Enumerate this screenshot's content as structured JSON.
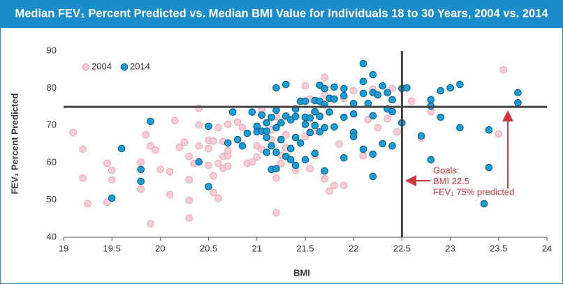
{
  "chart_data": {
    "type": "scatter",
    "title": "Median FEV₁ Percent Predicted vs. Median BMI Value for Individuals 18 to 30 Years, 2004 vs. 2014",
    "x_label": "BMI",
    "y_label": "FEV₁ Percent Predicted",
    "xlim": [
      19,
      24
    ],
    "xticks": [
      19,
      19.5,
      20,
      20.5,
      21,
      21.5,
      22,
      22.5,
      23,
      23.5,
      24
    ],
    "ylim": [
      40,
      90
    ],
    "yticks": [
      40,
      50,
      60,
      70,
      80,
      90
    ],
    "legend": "upper left",
    "reference_lines": {
      "x": 22.5,
      "y": 75
    },
    "annotation": [
      "Goals:",
      "BMI 22.5",
      "FEV₁ 75% predicted"
    ],
    "series": [
      {
        "name": "2004",
        "color": "#f7cdd6",
        "x": [
          19.1,
          19.2,
          19.2,
          19.25,
          19.45,
          19.45,
          19.5,
          19.5,
          19.8,
          19.8,
          19.85,
          19.9,
          19.9,
          19.95,
          20,
          20.1,
          20.15,
          20.1,
          20.2,
          20.25,
          20.3,
          20.3,
          20.3,
          20.3,
          20.35,
          20.4,
          20.4,
          20.4,
          20.5,
          20.5,
          20.5,
          20.55,
          20.55,
          20.55,
          20.6,
          20.6,
          20.6,
          20.65,
          20.65,
          20.65,
          20.7,
          20.7,
          20.7,
          20.7,
          20.8,
          20.85,
          20.9,
          20.95,
          21,
          21,
          21.05,
          21.05,
          21.15,
          21.15,
          21.2,
          21.2,
          21.2,
          21.25,
          21.25,
          21.3,
          21.3,
          21.4,
          21.5,
          21.5,
          21.55,
          21.55,
          21.6,
          21.6,
          21.65,
          21.7,
          21.7,
          21.7,
          21.75,
          21.8,
          21.85,
          21.9,
          21.9,
          22,
          22.1,
          22.15,
          22.25,
          22.35,
          22.4,
          22.45,
          22.6,
          22.7,
          22.8,
          23.5,
          23.55,
          22.2
        ],
        "values": [
          68.1,
          63.6,
          55.9,
          49,
          59.8,
          49.4,
          55.4,
          58,
          52.9,
          60.2,
          67.5,
          64.5,
          43.6,
          63.4,
          58.2,
          57.6,
          71.3,
          51.4,
          64.2,
          65.5,
          61.7,
          55.4,
          49.9,
          45.2,
          59.8,
          70.1,
          64.5,
          74.6,
          63.8,
          59.3,
          66,
          65.8,
          56.5,
          52,
          59.8,
          69.4,
          50.5,
          61.7,
          58.5,
          65.7,
          70.3,
          61.9,
          59.1,
          63.2,
          70.9,
          69.4,
          59.8,
          60.2,
          61.5,
          64.5,
          74.3,
          63.6,
          66.2,
          68.8,
          46.6,
          72.4,
          55.9,
          61.9,
          59.8,
          64,
          67.5,
          58,
          67,
          80.6,
          77.1,
          58.4,
          61.9,
          68.5,
          72.6,
          82.9,
          78.2,
          55.7,
          52.4,
          53.9,
          65,
          77.3,
          53.9,
          79.3,
          61.9,
          71.6,
          69.4,
          71.8,
          79.9,
          68.3,
          76.5,
          66.6,
          73.7,
          67.7,
          84.9,
          79.7
        ]
      },
      {
        "name": "2014",
        "color": "#1b9dd3",
        "x": [
          19.5,
          19.6,
          19.8,
          19.8,
          19.9,
          20.4,
          20.5,
          20.5,
          20.7,
          20.75,
          20.8,
          20.85,
          20.9,
          20.95,
          21,
          21,
          21.05,
          21.05,
          21.1,
          21.1,
          21.1,
          21.1,
          21.15,
          21.15,
          21.15,
          21.2,
          21.2,
          21.2,
          21.2,
          21.2,
          21.25,
          21.25,
          21.3,
          21.3,
          21.3,
          21.35,
          21.35,
          21.35,
          21.4,
          21.4,
          21.4,
          21.4,
          21.45,
          21.45,
          21.5,
          21.5,
          21.5,
          21.5,
          21.55,
          21.55,
          21.6,
          21.6,
          21.6,
          21.6,
          21.65,
          21.65,
          21.65,
          21.65,
          21.7,
          21.7,
          21.7,
          21.7,
          21.75,
          21.75,
          21.8,
          21.8,
          21.8,
          21.9,
          21.9,
          21.9,
          21.9,
          22,
          22,
          22,
          22,
          22.1,
          22.1,
          22.1,
          22.1,
          22.15,
          22.2,
          22.2,
          22.2,
          22.2,
          22.2,
          22.25,
          22.3,
          22.3,
          22.35,
          22.35,
          22.4,
          22.4,
          22.4,
          22.5,
          22.5,
          22.55,
          22.7,
          22.8,
          22.8,
          22.8,
          22.9,
          22.9,
          23,
          23.1,
          23.1,
          23.35,
          23.4,
          23.4,
          23.7,
          23.7
        ],
        "values": [
          50.5,
          63.8,
          58.2,
          55,
          71.1,
          60.2,
          53.6,
          69.8,
          65.3,
          73.6,
          66.2,
          64.5,
          67.9,
          73.6,
          69.8,
          68.3,
          68.5,
          72.8,
          68.5,
          62.8,
          66.8,
          70.7,
          64.5,
          58.2,
          72.2,
          80.1,
          58.4,
          62.8,
          69.4,
          74.1,
          70.7,
          66.2,
          81,
          61.7,
          72.5,
          60.8,
          63.8,
          71.5,
          72.4,
          74.4,
          59.3,
          66.8,
          76.5,
          65.3,
          60.8,
          76.5,
          72.2,
          70.3,
          68.1,
          72,
          70,
          62.5,
          76.7,
          73.7,
          80.8,
          68.3,
          76.5,
          72.4,
          79.9,
          75.6,
          69.4,
          57.8,
          73.6,
          77.3,
          69.6,
          80.3,
          77.1,
          72.2,
          78,
          61.3,
          79.9,
          75.9,
          68.1,
          73.1,
          67,
          86.6,
          81.8,
          78.6,
          63.6,
          75.9,
          83.6,
          78.8,
          72.6,
          62.3,
          56.3,
          78.2,
          80.6,
          65.1,
          78.8,
          74.4,
          73.7,
          64.5,
          76.9,
          79.9,
          70.7,
          80.1,
          67.2,
          76.9,
          75.2,
          60.8,
          79.3,
          72.2,
          80.1,
          81,
          69.4,
          49,
          68.8,
          58.7,
          78.8,
          76.1
        ]
      }
    ]
  }
}
